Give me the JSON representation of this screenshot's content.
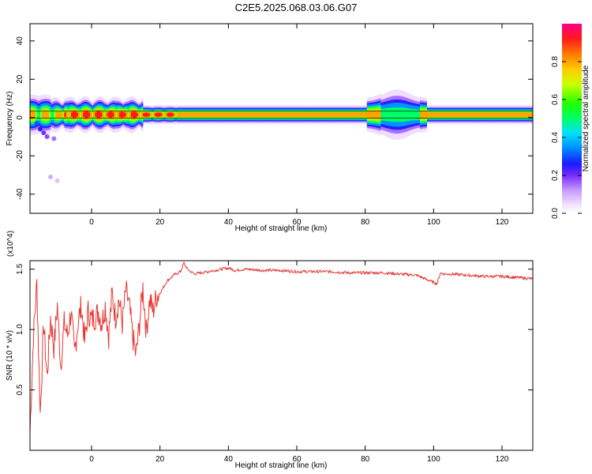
{
  "title": "C2E5.2025.068.03.06.G07",
  "colors": {
    "snr_line": "#e53935",
    "frame": "#000000",
    "background": "#ffffff"
  },
  "chart_data": [
    {
      "type": "heatmap",
      "xlabel": "Height of straight line (km)",
      "ylabel": "Frequency (Hz)",
      "colorbar_label": "Normalized spectral amplitude",
      "xlim": [
        -18,
        129
      ],
      "ylim": [
        -50,
        49
      ],
      "x_ticks": [
        0,
        20,
        40,
        60,
        80,
        100,
        120
      ],
      "y_ticks": [
        -40,
        -20,
        0,
        20,
        40
      ],
      "colorbar_range": [
        0,
        1
      ],
      "colorbar_ticks": [
        0.0,
        0.2,
        0.4,
        0.6,
        0.8
      ],
      "colormap": "rainbow (white-purple-blue-cyan-green-yellow-orange-red-magenta)",
      "description_values": {
        "center_frequency_hz": 1.5,
        "band_halfwidth_hz": 1.2,
        "broadening_near_x": [
          -15,
          10,
          90
        ]
      }
    },
    {
      "type": "line",
      "xlabel": "Height of straight line (km)",
      "ylabel": "SNR (10 * v/v)",
      "y_multiplier": "(x10^4)",
      "xlim": [
        -18,
        129
      ],
      "ylim": [
        0.0,
        1.57
      ],
      "x_ticks": [
        0,
        20,
        40,
        60,
        80,
        100,
        120
      ],
      "y_ticks": [
        0.5,
        1.0,
        1.5
      ],
      "series": [
        {
          "x": [
            -18,
            -17,
            -16,
            -15,
            -14,
            -13,
            -12,
            -11,
            -10,
            -9,
            -8,
            -7,
            -6,
            -5,
            -4,
            -3,
            -2,
            -1,
            0,
            1,
            2,
            3,
            4,
            5,
            6,
            7,
            8,
            9,
            10,
            11,
            12,
            13,
            14,
            15,
            16,
            17,
            18,
            19,
            20,
            22,
            24,
            26,
            27,
            28,
            30,
            32,
            34,
            36,
            38,
            40,
            42,
            45,
            50,
            55,
            60,
            65,
            70,
            75,
            80,
            85,
            90,
            95,
            100,
            101,
            102,
            103,
            105,
            110,
            115,
            120,
            125,
            129
          ],
          "values": [
            0.15,
            0.95,
            1.38,
            0.3,
            1.05,
            0.6,
            1.1,
            0.85,
            1.2,
            0.7,
            1.05,
            0.95,
            1.15,
            0.8,
            1.05,
            1.2,
            0.9,
            1.15,
            1.08,
            1.1,
            1.15,
            1.05,
            1.2,
            0.95,
            1.3,
            1.1,
            1.25,
            1.05,
            1.32,
            1.2,
            0.95,
            0.78,
            1.05,
            1.35,
            0.98,
            1.25,
            1.15,
            1.28,
            1.3,
            1.4,
            1.45,
            1.48,
            1.55,
            1.5,
            1.46,
            1.47,
            1.48,
            1.49,
            1.5,
            1.51,
            1.49,
            1.5,
            1.49,
            1.49,
            1.48,
            1.48,
            1.48,
            1.47,
            1.47,
            1.47,
            1.46,
            1.45,
            1.39,
            1.38,
            1.47,
            1.46,
            1.46,
            1.45,
            1.44,
            1.44,
            1.43,
            1.42
          ]
        }
      ]
    }
  ]
}
